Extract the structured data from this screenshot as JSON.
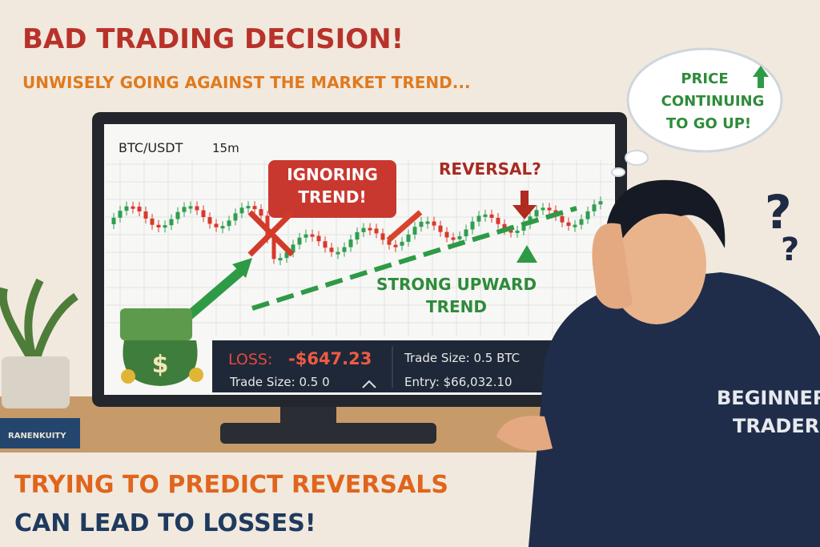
{
  "header": {
    "title": "BAD TRADING DECISION!",
    "subtitle": "UNWISELY GOING AGAINST THE MARKET TREND..."
  },
  "thought": {
    "lines": [
      "PRICE",
      "CONTINUING",
      "TO GO UP!"
    ]
  },
  "chart": {
    "pair": "BTC/USDT",
    "timeframe": "15m",
    "callout": "IGNORING TREND!",
    "question": "REVERSAL?",
    "trend_label": [
      "STRONG UPWARD",
      "TREND"
    ]
  },
  "panel": {
    "loss_label": "LOSS:",
    "loss_value": "-$647.23",
    "trade_size_left": "Trade Size: 0.5 0",
    "trade_size_right": "Trade Size: 0.5 BTC",
    "entry": "Entry: $66,032.10"
  },
  "book": "RANENKUITY",
  "hoodie": [
    "BEGINNER",
    "TRADER"
  ],
  "footer": {
    "line1": "TRYING TO PREDICT REVERSALS",
    "line2": "CAN LEAD TO LOSSES!"
  }
}
